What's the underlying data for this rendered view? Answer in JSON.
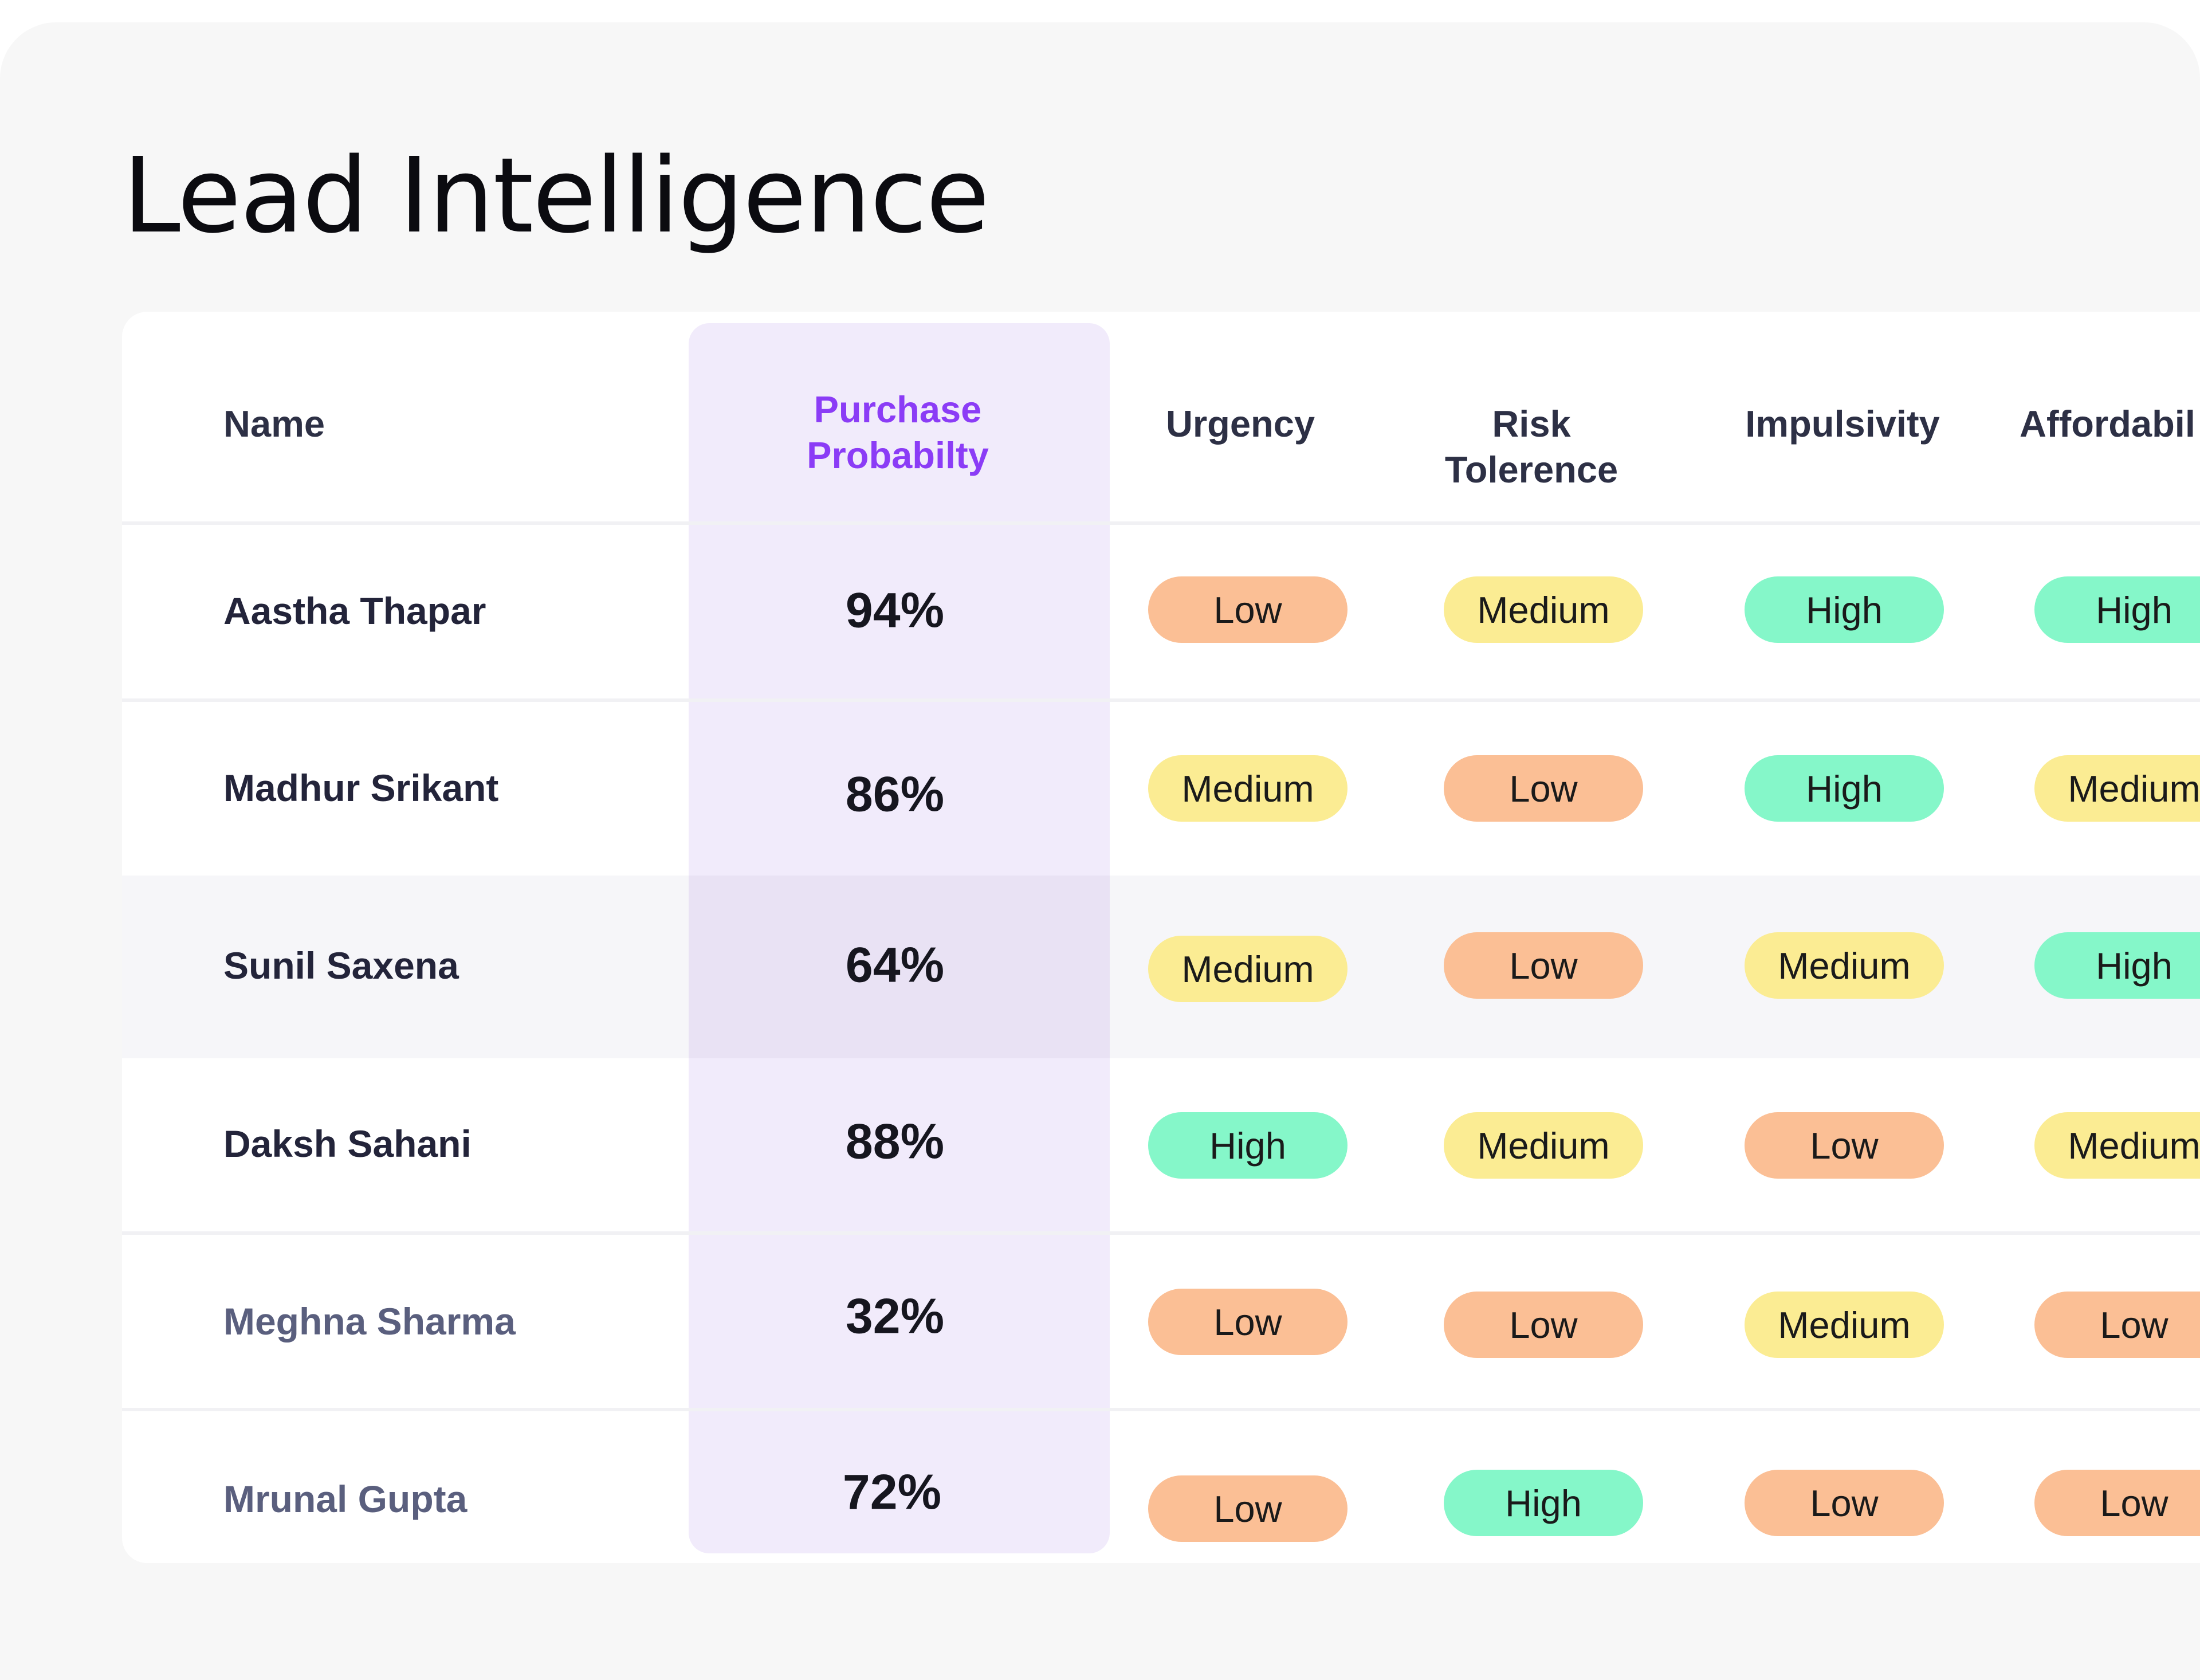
{
  "title": "Lead Intelligence",
  "table": {
    "headers": {
      "name": "Name",
      "probability_line1": "Purchase",
      "probability_line2": "Probabilty",
      "urgency": "Urgency",
      "risk_line1": "Risk",
      "risk_line2": "Tolerence",
      "impulsivity": "Impulsivity",
      "affordability": "Affordabil"
    },
    "rows": [
      {
        "name": "Aastha Thapar",
        "probability": "94%",
        "urgency": "Low",
        "risk": "Medium",
        "impulsivity": "High",
        "affordability": "High"
      },
      {
        "name": "Madhur Srikant",
        "probability": "86%",
        "urgency": "Medium",
        "risk": "Low",
        "impulsivity": "High",
        "affordability": "Medium"
      },
      {
        "name": "Sunil Saxena",
        "probability": "64%",
        "urgency": "Medium",
        "risk": "Low",
        "impulsivity": "Medium",
        "affordability": "High"
      },
      {
        "name": "Daksh Sahani",
        "probability": "88%",
        "urgency": "High",
        "risk": "Medium",
        "impulsivity": "Low",
        "affordability": "Medium"
      },
      {
        "name": "Meghna Sharma",
        "probability": "32%",
        "urgency": "Low",
        "risk": "Low",
        "impulsivity": "Medium",
        "affordability": "Low"
      },
      {
        "name": "Mrunal Gupta",
        "probability": "72%",
        "urgency": "Low",
        "risk": "High",
        "impulsivity": "Low",
        "affordability": "Low"
      }
    ]
  },
  "colors": {
    "low": "#fbbf95",
    "medium": "#fbec93",
    "high": "#85f7c9",
    "accent": "#8b3cf6"
  }
}
